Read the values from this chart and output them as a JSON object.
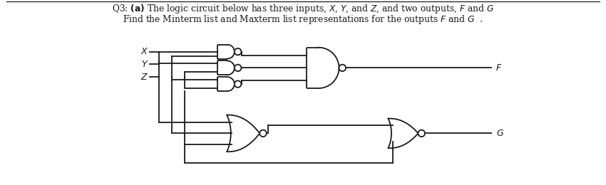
{
  "bg_color": "#ffffff",
  "line_color": "#1a1a1a",
  "text_color": "#1a1a1a",
  "fig_width": 8.5,
  "fig_height": 2.6,
  "title1": "Q3: (a) The logic circuit below has three inputs, X, Y, and Z, and two outputs, F and G",
  "title2": "Find the Minterm list and Maxterm list representations for the outputs F and G  .",
  "input_labels": [
    "X",
    "Y",
    "Z"
  ],
  "output_labels": [
    "F",
    "G"
  ]
}
